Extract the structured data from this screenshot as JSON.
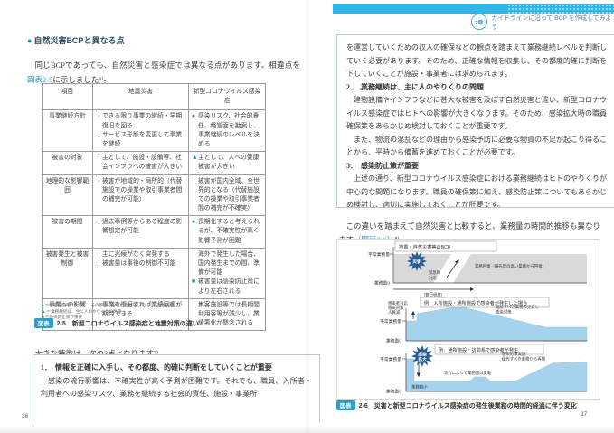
{
  "header": {
    "chapter_badge": "2章",
    "chapter_title": "ガイドラインに沿って BCP を作成してみよう"
  },
  "left_page": {
    "page_number": "36",
    "section_bullet": "●",
    "section_heading": "自然災害BCPと異なる点",
    "intro": {
      "pre": "同じBCPであっても、自然災害と感染症では異なる点があります。相違点を",
      "link": "図表2-5",
      "post": "に示しました⁶⁾。"
    },
    "table": {
      "headers": [
        "項目",
        "地震災害",
        "新型コロナウイルス感染症"
      ],
      "rows": [
        {
          "item": "事業継続方針",
          "quake": [
            {
              "m": "・",
              "t": "できる限り事業の継続・早期復旧を図る"
            },
            {
              "m": "・",
              "t": "サービス形態を変更して事業を継続"
            }
          ],
          "covid": [
            {
              "m": "●",
              "t": "感染リスク、社会的責任、経営面を勘案し、事業継続のレベルを決める"
            }
          ]
        },
        {
          "item": "被害の対象",
          "quake": [
            {
              "m": "・",
              "t": "主として、施設・設備等、社会インフラへの被害が大きい"
            }
          ],
          "covid": [
            {
              "m": "▲",
              "t": "主として、人への健康被害が大きい"
            }
          ]
        },
        {
          "item": "地理的な影響範囲",
          "quake": [
            {
              "m": "・",
              "t": "被害が地域的・局所的（代替施設での操業や取引事業者間の補完が可能）"
            }
          ],
          "covid": [
            {
              "m": "",
              "t": "被害が国内全域、全世界的となる（代替施設での操業や取引事業者間の補完が不確実）"
            }
          ]
        },
        {
          "item": "被害の期間",
          "quake": [
            {
              "m": "・",
              "t": "過去事例等からある程度の影響想定が可能"
            }
          ],
          "covid": [
            {
              "m": "●",
              "t": "長期化すると考えられるが、不確実性が高く影響予測が困難"
            }
          ]
        },
        {
          "item": "被害発生と被害制御",
          "quake": [
            {
              "m": "・",
              "t": "主に兆候がなく突発する"
            },
            {
              "m": "・",
              "t": "被害量は事後の制御不可能"
            }
          ],
          "covid": [
            {
              "m": "",
              "t": "海外で発生した場合、国内発生までの間、準備が可能"
            },
            {
              "m": "■",
              "t": "被害量は感染防止策により左右される"
            }
          ]
        },
        {
          "item": "事業への影響",
          "quake": [
            {
              "m": "・",
              "t": "事業を復旧すれば業績回復が期待できる"
            }
          ],
          "covid": [
            {
              "m": "",
              "t": "集客施設等では長期間利用客等が減少し、業績悪化が懸念される"
            }
          ]
        }
      ]
    },
    "footnotes": [
      {
        "m": "●",
        "t": "＝情報を正確に入手し、その都度、的確に判断をしていくことが必要"
      },
      {
        "m": "▲",
        "t": "＝業務継続は、主に人のやりくりの問題"
      },
      {
        "m": "■",
        "t": "＝感染防止策が重要"
      }
    ],
    "figure_caption": {
      "badge": "図表",
      "text": "2-5　新型コロナウイルス感染症と地震対策の違い"
    },
    "feature_para": "大きな特徴は、次の3点となります⁷⁾。",
    "box": {
      "item1_title": "1．　情報を正確に入手し、その都度、的確に判断をしていくことが重要",
      "item1_body": "感染の流行影響は、不確実性が高く予測が困難です。それでも、職員、入所者・利用者への感染リスク、業務を継続する社会的責任、施設・事業所"
    }
  },
  "right_page": {
    "page_number": "37",
    "box": {
      "cont": "を運営していくための収入の確保などの観点を踏まえて業務継続レベルを判断していく必要があります。そのため、正確な情報を収集し、その都度的確に判断を下していくことが施設・事業者には求められます。",
      "item2_title": "2．　業務継続は、主に人のやりくりの問題",
      "item2_body1": "建物設備やインフラなどに甚大な被害を及ぼす自然災害と違い、新型コロナウイルス感染症ではヒトへの影響が大きくなります。そのため、感染拡大時の職員確保策をあらかじめ検討しておくことが重要です。",
      "item2_body2": "また、物流の混乱などの理由から感染予防に必要な物資の不足が起こり得ることから、平時から備蓄を進めておくことが必要です。",
      "item3_title": "3．　感染防止策が重要",
      "item3_body": "上述の通り、新型コロナウイルス感染症における業務継続はヒトのやりくりが中心的な問題になります。職員の確保策に加え、感染防止策についてもあらかじめ検討し、適切に実施しておくことが肝要です。"
    },
    "cmp_para": {
      "pre": "この違いを踏まえて自然災害と比較すると、業務量の時間的推移も異なります",
      "link": "（図表2-6）",
      "post": "⁸⁾。"
    },
    "figure": {
      "chart1": {
        "title": "地震・自然災害等のBCP",
        "y_top": "平常業務量",
        "y_zero": "業務量0",
        "burst": "災害",
        "emergency_line1": "緊急時",
        "emergency_line2": "対応",
        "recovery": "業務回復（優先度の高い業務から回復）",
        "duration": "（数日程度）"
      },
      "chart2": {
        "title": "例：入所施設・通所施設で感染者が発生した場合",
        "y_top": "平常業務量",
        "y_zero": "業務量0",
        "left_line1": "感染者対応",
        "left_line2": "感染対策",
        "left_line3": "人員減",
        "right_line1": "継続すべき業務の見直し",
        "right_line2": "感染対策"
      },
      "chart3": {
        "title": "例：通所施設・訪問系で感染者が発生",
        "y_top": "平常業務量",
        "y_zero": "業務量0",
        "burst_line1": "感染",
        "burst_line2": "拡大",
        "shrink": "業務縮小",
        "mid": "流行によって業務量は変動",
        "right_line1": "感染対策実施",
        "right_line2": "優先すべき業務から再開"
      }
    },
    "figure_caption": {
      "badge": "図表",
      "text": "2-6　災害と新型コロナウイルス感染症の発生後業務の時間的経過に伴う変化"
    }
  },
  "colors": {
    "accent_cyan": "#2fb5e8",
    "badge_teal": "#2e9ec4",
    "link_blue": "#2196c8",
    "chart_gray": "#d9d9d9",
    "chart_blue": "#a5d2ed",
    "burst_navy": "#265c93"
  }
}
